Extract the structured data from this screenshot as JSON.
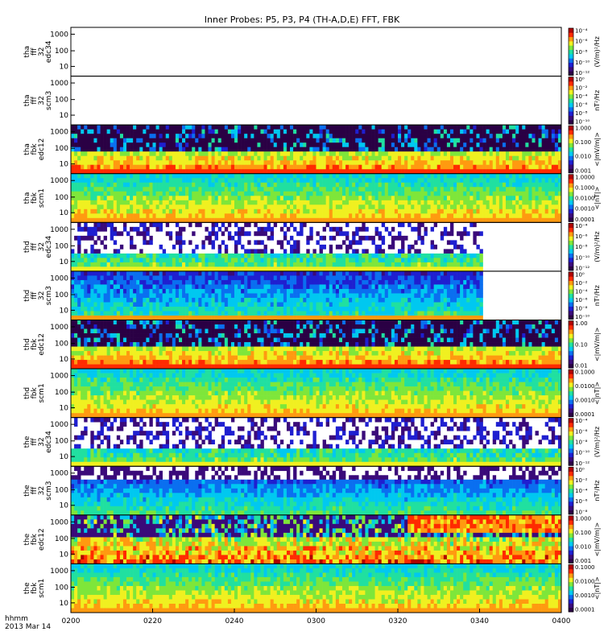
{
  "figure": {
    "title": "Inner Probes: P5, P3, P4 (TH-A,D,E) FFT, FBK",
    "time_format_label": "hhmm",
    "date_label": "2013 Mar 14"
  },
  "chart_data": {
    "type": "heatmap",
    "x_axis": {
      "tick_labels": [
        "0200",
        "0220",
        "0240",
        "0300",
        "0320",
        "0340",
        "0400"
      ],
      "range": [
        "02:00",
        "04:00"
      ]
    },
    "panels": [
      {
        "ylabel": [
          "tha",
          "fff",
          "32",
          "edc34"
        ],
        "yticks": [
          "10",
          "100",
          "1000"
        ],
        "cbar_ticks": [
          "10⁻¹²",
          "10⁻¹⁰",
          "10⁻⁸",
          "10⁻⁶",
          "10⁻⁴"
        ],
        "cbar_label": "(V/m)²/Hz",
        "kind": "blank",
        "data_end": 0.0
      },
      {
        "ylabel": [
          "tha",
          "fff",
          "32",
          "scm3"
        ],
        "yticks": [
          "10",
          "100",
          "1000"
        ],
        "cbar_ticks": [
          "10⁻¹⁰",
          "10⁻⁸",
          "10⁻⁶",
          "10⁻⁴",
          "10⁻²",
          "10⁰"
        ],
        "cbar_label": "nT²/Hz",
        "kind": "blank",
        "data_end": 0.0
      },
      {
        "ylabel": [
          "tha",
          "fbk",
          "edc12"
        ],
        "yticks": [
          "10",
          "100",
          "1000"
        ],
        "cbar_ticks": [
          "0.001",
          "0.010",
          "0.100",
          "1.000"
        ],
        "cbar_label": "<|mV/m|>",
        "kind": "fbk_e",
        "data_end": 1.0
      },
      {
        "ylabel": [
          "tha",
          "fbk",
          "scm1"
        ],
        "yticks": [
          "10",
          "100",
          "1000"
        ],
        "cbar_ticks": [
          "0.0001",
          "0.0010",
          "0.0100",
          "0.1000",
          "1.0000"
        ],
        "cbar_label": "<|nT|>",
        "kind": "fbk_b",
        "data_end": 1.0
      },
      {
        "ylabel": [
          "thd",
          "fff",
          "32",
          "edc34"
        ],
        "yticks": [
          "10",
          "100",
          "1000"
        ],
        "cbar_ticks": [
          "10⁻¹²",
          "10⁻¹⁰",
          "10⁻⁸",
          "10⁻⁶",
          "10⁻⁴"
        ],
        "cbar_label": "(V/m)²/Hz",
        "kind": "fff_e",
        "data_end": 0.84
      },
      {
        "ylabel": [
          "thd",
          "fff",
          "32",
          "scm3"
        ],
        "yticks": [
          "10",
          "100",
          "1000"
        ],
        "cbar_ticks": [
          "10⁻¹⁰",
          "10⁻⁸",
          "10⁻⁶",
          "10⁻⁴",
          "10⁻²",
          "10⁰"
        ],
        "cbar_label": "nT²/Hz",
        "kind": "fff_b",
        "data_end": 0.84
      },
      {
        "ylabel": [
          "thd",
          "fbk",
          "edc12"
        ],
        "yticks": [
          "10",
          "100",
          "1000"
        ],
        "cbar_ticks": [
          "0.01",
          "0.10",
          "1.00"
        ],
        "cbar_label": "<|mV/m|>",
        "kind": "fbk_e",
        "data_end": 1.0
      },
      {
        "ylabel": [
          "thd",
          "fbk",
          "scm1"
        ],
        "yticks": [
          "10",
          "100",
          "1000"
        ],
        "cbar_ticks": [
          "0.0001",
          "0.0010",
          "0.0100",
          "0.1000"
        ],
        "cbar_label": "<|nT|>",
        "kind": "fbk_b",
        "data_end": 1.0
      },
      {
        "ylabel": [
          "the",
          "fff",
          "32",
          "edc34"
        ],
        "yticks": [
          "10",
          "100",
          "1000"
        ],
        "cbar_ticks": [
          "10⁻¹²",
          "10⁻¹⁰",
          "10⁻⁸",
          "10⁻⁶",
          "10⁻⁴"
        ],
        "cbar_label": "(V/m)²/Hz",
        "kind": "fff_e",
        "data_end": 1.0
      },
      {
        "ylabel": [
          "the",
          "fff",
          "32",
          "scm3"
        ],
        "yticks": [
          "10",
          "100",
          "1000"
        ],
        "cbar_ticks": [
          "10⁻⁸",
          "10⁻⁶",
          "10⁻⁴",
          "10⁻²",
          "10⁰"
        ],
        "cbar_label": "nT²/Hz",
        "kind": "fff_b2",
        "data_end": 1.0
      },
      {
        "ylabel": [
          "the",
          "fbk",
          "edc12"
        ],
        "yticks": [
          "10",
          "100",
          "1000"
        ],
        "cbar_ticks": [
          "0.001",
          "0.010",
          "0.100",
          "1.000"
        ],
        "cbar_label": "<|mV/m|>",
        "kind": "fbk_e2",
        "data_end": 1.0
      },
      {
        "ylabel": [
          "the",
          "fbk",
          "scm1"
        ],
        "yticks": [
          "10",
          "100",
          "1000"
        ],
        "cbar_ticks": [
          "0.0001",
          "0.0010",
          "0.0100",
          "0.1000"
        ],
        "cbar_label": "<|nT|>",
        "kind": "fbk_b",
        "data_end": 1.0
      }
    ],
    "colormap": [
      "#2a0044",
      "#3a0a7a",
      "#1f1fd0",
      "#0a6ff0",
      "#00c8f0",
      "#20e0a0",
      "#7ee63a",
      "#f0f020",
      "#ff9a10",
      "#ff2a00",
      "#b00000"
    ]
  }
}
